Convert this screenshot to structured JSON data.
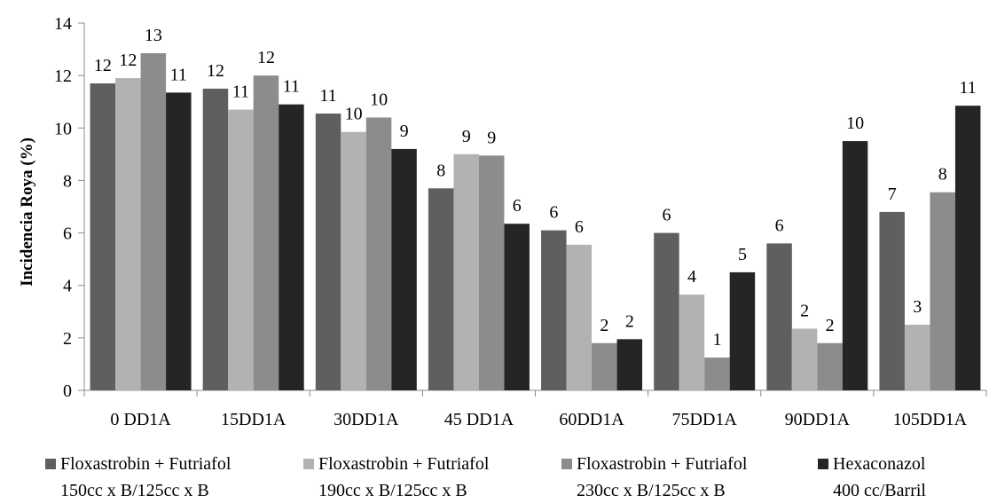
{
  "chart_data": {
    "type": "bar",
    "title": "",
    "xlabel": "",
    "ylabel": "Incidencia Roya (%)",
    "ylim": [
      0,
      14
    ],
    "yticks": [
      0,
      2,
      4,
      6,
      8,
      10,
      12,
      14
    ],
    "grid": false,
    "legend_position": "bottom",
    "categories": [
      "0 DD1A",
      "15DD1A",
      "30DD1A",
      "45 DD1A",
      "60DD1A",
      "75DD1A",
      "90DD1A",
      "105DD1A"
    ],
    "series": [
      {
        "name": "Floxastrobin + Futriafol 150cc x B/125cc x B",
        "legend_lines": [
          "Floxastrobin + Futriafol",
          "150cc x B/125cc x B"
        ],
        "color": "#5f5f5f",
        "values": [
          11.7,
          11.5,
          10.55,
          7.7,
          6.1,
          6.0,
          5.6,
          6.8
        ],
        "labels": [
          "12",
          "12",
          "11",
          "8",
          "6",
          "6",
          "6",
          "7"
        ]
      },
      {
        "name": "Floxastrobin + Futriafol 190cc x B/125cc x B",
        "legend_lines": [
          "Floxastrobin + Futriafol",
          "190cc x B/125cc x B"
        ],
        "color": "#b2b2b2",
        "values": [
          11.9,
          10.7,
          9.85,
          9.0,
          5.55,
          3.65,
          2.35,
          2.5
        ],
        "labels": [
          "12",
          "11",
          "10",
          "9",
          "6",
          "4",
          "2",
          "3"
        ]
      },
      {
        "name": "Floxastrobin + Futriafol 230cc x B/125cc x B",
        "legend_lines": [
          "Floxastrobin + Futriafol",
          "230cc x B/125cc x B"
        ],
        "color": "#8c8c8c",
        "values": [
          12.85,
          12.0,
          10.4,
          8.95,
          1.8,
          1.25,
          1.8,
          7.55
        ],
        "labels": [
          "13",
          "12",
          "10",
          "9",
          "2",
          "1",
          "2",
          "8"
        ]
      },
      {
        "name": "Hexaconazol 400 cc/Barril",
        "legend_lines": [
          "Hexaconazol",
          "400 cc/Barril"
        ],
        "color": "#252525",
        "values": [
          11.35,
          10.9,
          9.2,
          6.35,
          1.95,
          4.5,
          9.5,
          10.85
        ],
        "labels": [
          "11",
          "11",
          "9",
          "6",
          "2",
          "5",
          "10",
          "11"
        ]
      }
    ]
  }
}
